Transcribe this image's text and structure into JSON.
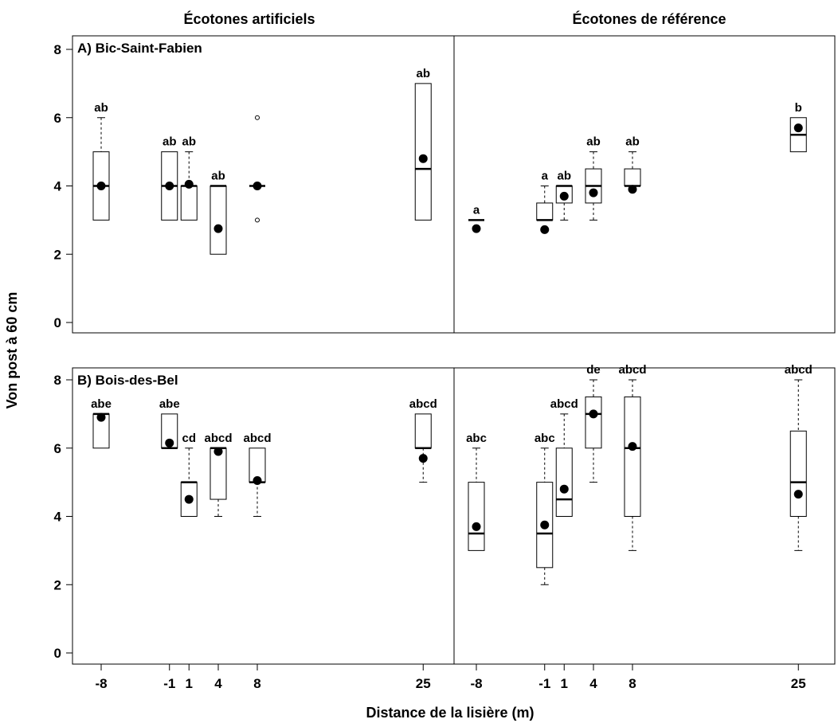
{
  "chart_data": {
    "type": "boxplot",
    "xlabel": "Distance de la lisière (m)",
    "ylabel": "Von post à  60 cm",
    "column_titles": [
      "Écotones artificiels",
      "Écotones de référence"
    ],
    "x_positions": [
      -8,
      -1,
      1,
      4,
      8,
      25
    ],
    "x_tick_labels": [
      "-8",
      "-1",
      "1",
      "4",
      "8",
      "25"
    ],
    "ylim": [
      0,
      8
    ],
    "y_ticks": [
      0,
      2,
      4,
      6,
      8
    ],
    "panels": [
      {
        "title": "A) Bic-Saint-Fabien",
        "groups": [
          {
            "name": "Écotones artificiels",
            "boxes": [
              {
                "x": -8,
                "min": 3,
                "q1": 3,
                "median": 4,
                "q3": 5,
                "max": 6,
                "mean": 4.0,
                "letter": "ab"
              },
              {
                "x": -1,
                "min": 3,
                "q1": 3,
                "median": 4,
                "q3": 5,
                "max": 5,
                "mean": 4.0,
                "letter": "ab"
              },
              {
                "x": 1,
                "min": 3,
                "q1": 3,
                "median": 4,
                "q3": 4,
                "max": 5,
                "mean": 4.05,
                "letter": "ab"
              },
              {
                "x": 4,
                "min": 2,
                "q1": 2,
                "median": 4,
                "q3": 4,
                "max": 4,
                "mean": 2.75,
                "letter": "ab"
              },
              {
                "x": 8,
                "min": 4,
                "q1": 4,
                "median": 4,
                "q3": 4,
                "max": 4,
                "mean": 4.0,
                "letter": "",
                "outliers": [
                  3,
                  6
                ]
              },
              {
                "x": 25,
                "min": 3,
                "q1": 3,
                "median": 4.5,
                "q3": 7,
                "max": 7,
                "mean": 4.8,
                "letter": "ab"
              }
            ]
          },
          {
            "name": "Écotones de référence",
            "boxes": [
              {
                "x": -8,
                "min": 3,
                "q1": 3,
                "median": 3,
                "q3": 3,
                "max": 3,
                "mean": 2.75,
                "letter": "a"
              },
              {
                "x": -1,
                "min": 3,
                "q1": 3,
                "median": 3,
                "q3": 3.5,
                "max": 4,
                "mean": 2.72,
                "letter": "a"
              },
              {
                "x": 1,
                "min": 3,
                "q1": 3.5,
                "median": 4,
                "q3": 4,
                "max": 4,
                "mean": 3.7,
                "letter": "ab"
              },
              {
                "x": 4,
                "min": 3,
                "q1": 3.5,
                "median": 4,
                "q3": 4.5,
                "max": 5,
                "mean": 3.8,
                "letter": "ab"
              },
              {
                "x": 8,
                "min": 4,
                "q1": 4,
                "median": 4,
                "q3": 4.5,
                "max": 5,
                "mean": 3.9,
                "letter": "ab"
              },
              {
                "x": 25,
                "min": 5,
                "q1": 5,
                "median": 5.5,
                "q3": 6,
                "max": 6,
                "mean": 5.7,
                "letter": "b"
              }
            ]
          }
        ]
      },
      {
        "title": "B) Bois-des-Bel",
        "groups": [
          {
            "name": "Écotones artificiels",
            "boxes": [
              {
                "x": -8,
                "min": 6,
                "q1": 6,
                "median": 7,
                "q3": 7,
                "max": 7,
                "mean": 6.9,
                "letter": "abe"
              },
              {
                "x": -1,
                "min": 6,
                "q1": 6,
                "median": 6,
                "q3": 7,
                "max": 7,
                "mean": 6.15,
                "letter": "abe"
              },
              {
                "x": 1,
                "min": 4,
                "q1": 4,
                "median": 5,
                "q3": 5,
                "max": 6,
                "mean": 4.5,
                "letter": "cd"
              },
              {
                "x": 4,
                "min": 4,
                "q1": 4.5,
                "median": 6,
                "q3": 6,
                "max": 6,
                "mean": 5.9,
                "letter": "abcd"
              },
              {
                "x": 8,
                "min": 4,
                "q1": 5,
                "median": 5,
                "q3": 6,
                "max": 6,
                "mean": 5.05,
                "letter": "abcd"
              },
              {
                "x": 25,
                "min": 5,
                "q1": 6,
                "median": 6,
                "q3": 7,
                "max": 7,
                "mean": 5.7,
                "letter": "abcd"
              }
            ]
          },
          {
            "name": "Écotones de référence",
            "boxes": [
              {
                "x": -8,
                "min": 3,
                "q1": 3,
                "median": 3.5,
                "q3": 5,
                "max": 6,
                "mean": 3.7,
                "letter": "abc"
              },
              {
                "x": -1,
                "min": 2,
                "q1": 2.5,
                "median": 3.5,
                "q3": 5,
                "max": 6,
                "mean": 3.75,
                "letter": "abc"
              },
              {
                "x": 1,
                "min": 4,
                "q1": 4,
                "median": 4.5,
                "q3": 6,
                "max": 7,
                "mean": 4.8,
                "letter": "abcd"
              },
              {
                "x": 4,
                "min": 5,
                "q1": 6,
                "median": 7,
                "q3": 7.5,
                "max": 8,
                "mean": 7.0,
                "letter": "de"
              },
              {
                "x": 8,
                "min": 3,
                "q1": 4,
                "median": 6,
                "q3": 7.5,
                "max": 8,
                "mean": 6.05,
                "letter": "abcd"
              },
              {
                "x": 25,
                "min": 3,
                "q1": 4,
                "median": 5,
                "q3": 6.5,
                "max": 8,
                "mean": 4.65,
                "letter": "abcd"
              }
            ]
          }
        ]
      }
    ]
  }
}
